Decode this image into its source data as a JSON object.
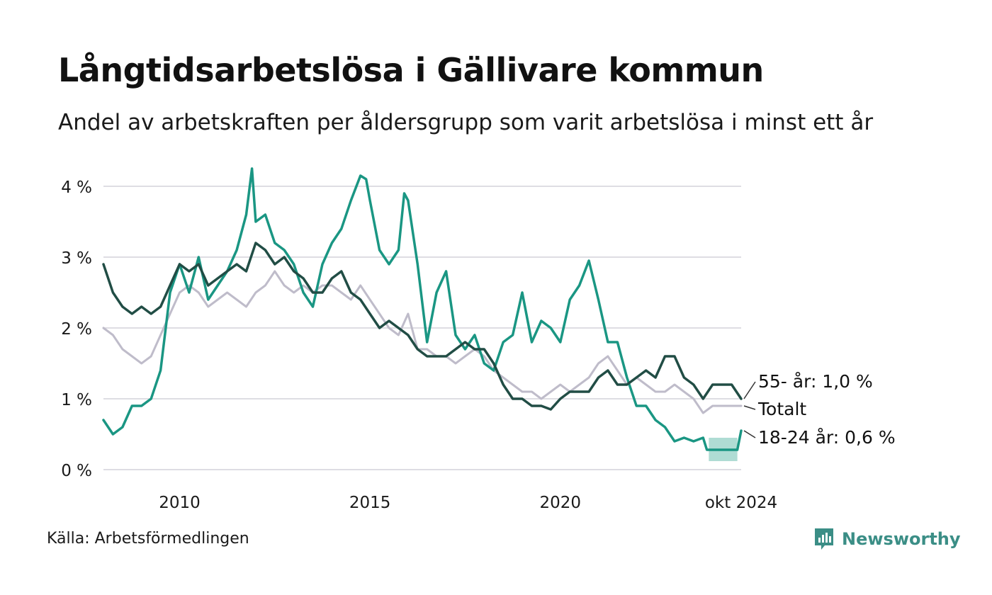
{
  "header": {
    "title": "Långtidsarbetslösa i Gällivare kommun",
    "subtitle": "Andel av arbetskraften per åldersgrupp som varit arbetslösa i minst ett år"
  },
  "footer": {
    "source": "Källa: Arbetsförmedlingen",
    "brand": "Newsworthy"
  },
  "colors": {
    "youth": "#1a9683",
    "old": "#214d45",
    "total": "#bfbcca",
    "grid": "#dedde3",
    "band": "#a6d8cf",
    "brand": "#3b8e86"
  },
  "chart_data": {
    "type": "line",
    "title": "Långtidsarbetslösa i Gällivare kommun",
    "subtitle": "Andel av arbetskraften per åldersgrupp som varit arbetslösa i minst ett år",
    "xlabel": "",
    "ylabel": "",
    "xlim": [
      2008.0,
      2024.75
    ],
    "ylim": [
      0,
      4.3
    ],
    "y_ticks": [
      {
        "value": 0,
        "label": "0 %"
      },
      {
        "value": 1,
        "label": "1 %"
      },
      {
        "value": 2,
        "label": "2 %"
      },
      {
        "value": 3,
        "label": "3 %"
      },
      {
        "value": 4,
        "label": "4 %"
      }
    ],
    "x_ticks": [
      {
        "value": 2010,
        "label": "2010"
      },
      {
        "value": 2015,
        "label": "2015"
      },
      {
        "value": 2020,
        "label": "2020"
      },
      {
        "value": 2024.75,
        "label": "okt 2024"
      }
    ],
    "grid": true,
    "series": [
      {
        "name": "Totalt",
        "end_label": "Totalt",
        "color_key": "total",
        "x": [
          2008.0,
          2008.25,
          2008.5,
          2008.75,
          2009.0,
          2009.25,
          2009.5,
          2009.75,
          2010.0,
          2010.25,
          2010.5,
          2010.75,
          2011.0,
          2011.25,
          2011.5,
          2011.75,
          2012.0,
          2012.25,
          2012.5,
          2012.75,
          2013.0,
          2013.25,
          2013.5,
          2013.75,
          2014.0,
          2014.25,
          2014.5,
          2014.75,
          2015.0,
          2015.25,
          2015.5,
          2015.75,
          2016.0,
          2016.25,
          2016.5,
          2016.75,
          2017.0,
          2017.25,
          2017.5,
          2017.75,
          2018.0,
          2018.25,
          2018.5,
          2018.75,
          2019.0,
          2019.25,
          2019.5,
          2019.75,
          2020.0,
          2020.25,
          2020.5,
          2020.75,
          2021.0,
          2021.25,
          2021.5,
          2021.75,
          2022.0,
          2022.25,
          2022.5,
          2022.75,
          2023.0,
          2023.25,
          2023.5,
          2023.75,
          2024.0,
          2024.25,
          2024.5,
          2024.75
        ],
        "values": [
          2.0,
          1.9,
          1.7,
          1.6,
          1.5,
          1.6,
          1.9,
          2.2,
          2.5,
          2.6,
          2.5,
          2.3,
          2.4,
          2.5,
          2.4,
          2.3,
          2.5,
          2.6,
          2.8,
          2.6,
          2.5,
          2.6,
          2.5,
          2.6,
          2.6,
          2.5,
          2.4,
          2.6,
          2.4,
          2.2,
          2.0,
          1.9,
          2.2,
          1.7,
          1.7,
          1.6,
          1.6,
          1.5,
          1.6,
          1.7,
          1.6,
          1.4,
          1.3,
          1.2,
          1.1,
          1.1,
          1.0,
          1.1,
          1.2,
          1.1,
          1.2,
          1.3,
          1.5,
          1.6,
          1.4,
          1.2,
          1.3,
          1.2,
          1.1,
          1.1,
          1.2,
          1.1,
          1.0,
          0.8,
          0.9,
          0.9,
          0.9,
          0.9
        ]
      },
      {
        "name": "18-24 år",
        "end_label": "18-24 år: 0,6 %",
        "color_key": "youth",
        "x": [
          2008.0,
          2008.25,
          2008.5,
          2008.75,
          2009.0,
          2009.25,
          2009.5,
          2009.75,
          2010.0,
          2010.25,
          2010.5,
          2010.75,
          2011.0,
          2011.25,
          2011.5,
          2011.75,
          2011.9,
          2012.0,
          2012.25,
          2012.5,
          2012.75,
          2013.0,
          2013.25,
          2013.5,
          2013.75,
          2014.0,
          2014.25,
          2014.5,
          2014.75,
          2014.9,
          2015.0,
          2015.25,
          2015.5,
          2015.75,
          2015.9,
          2016.0,
          2016.25,
          2016.5,
          2016.75,
          2017.0,
          2017.25,
          2017.5,
          2017.75,
          2018.0,
          2018.25,
          2018.5,
          2018.75,
          2019.0,
          2019.25,
          2019.5,
          2019.75,
          2020.0,
          2020.25,
          2020.5,
          2020.75,
          2021.0,
          2021.25,
          2021.5,
          2021.75,
          2022.0,
          2022.25,
          2022.5,
          2022.75,
          2023.0,
          2023.25,
          2023.5,
          2023.75,
          2023.85,
          2024.0,
          2024.25,
          2024.5,
          2024.65,
          2024.75
        ],
        "values": [
          0.7,
          0.5,
          0.6,
          0.9,
          0.9,
          1.0,
          1.4,
          2.5,
          2.9,
          2.5,
          3.0,
          2.4,
          2.6,
          2.8,
          3.1,
          3.6,
          4.25,
          3.5,
          3.6,
          3.2,
          3.1,
          2.9,
          2.5,
          2.3,
          2.9,
          3.2,
          3.4,
          3.8,
          4.15,
          4.1,
          3.8,
          3.1,
          2.9,
          3.1,
          3.9,
          3.8,
          2.9,
          1.8,
          2.5,
          2.8,
          1.9,
          1.7,
          1.9,
          1.5,
          1.4,
          1.8,
          1.9,
          2.5,
          1.8,
          2.1,
          2.0,
          1.8,
          2.4,
          2.6,
          2.95,
          2.4,
          1.8,
          1.8,
          1.3,
          0.9,
          0.9,
          0.7,
          0.6,
          0.4,
          0.45,
          0.4,
          0.45,
          0.28,
          0.28,
          0.28,
          0.28,
          0.28,
          0.55
        ],
        "band": {
          "x_start": 2023.9,
          "x_end": 2024.65,
          "low": 0.12,
          "high": 0.45
        }
      },
      {
        "name": "55- år",
        "end_label": "55- år: 1,0 %",
        "color_key": "old",
        "x": [
          2008.0,
          2008.25,
          2008.5,
          2008.75,
          2009.0,
          2009.25,
          2009.5,
          2009.75,
          2010.0,
          2010.25,
          2010.5,
          2010.75,
          2011.0,
          2011.25,
          2011.5,
          2011.75,
          2012.0,
          2012.25,
          2012.5,
          2012.75,
          2013.0,
          2013.25,
          2013.5,
          2013.75,
          2014.0,
          2014.25,
          2014.5,
          2014.75,
          2015.0,
          2015.25,
          2015.5,
          2015.75,
          2016.0,
          2016.25,
          2016.5,
          2016.75,
          2017.0,
          2017.25,
          2017.5,
          2017.75,
          2018.0,
          2018.25,
          2018.5,
          2018.75,
          2019.0,
          2019.25,
          2019.5,
          2019.75,
          2020.0,
          2020.25,
          2020.5,
          2020.75,
          2021.0,
          2021.25,
          2021.5,
          2021.75,
          2022.0,
          2022.25,
          2022.5,
          2022.75,
          2023.0,
          2023.25,
          2023.5,
          2023.75,
          2024.0,
          2024.25,
          2024.5,
          2024.75
        ],
        "values": [
          2.9,
          2.5,
          2.3,
          2.2,
          2.3,
          2.2,
          2.3,
          2.6,
          2.9,
          2.8,
          2.9,
          2.6,
          2.7,
          2.8,
          2.9,
          2.8,
          3.2,
          3.1,
          2.9,
          3.0,
          2.8,
          2.7,
          2.5,
          2.5,
          2.7,
          2.8,
          2.5,
          2.4,
          2.2,
          2.0,
          2.1,
          2.0,
          1.9,
          1.7,
          1.6,
          1.6,
          1.6,
          1.7,
          1.8,
          1.7,
          1.7,
          1.5,
          1.2,
          1.0,
          1.0,
          0.9,
          0.9,
          0.85,
          1.0,
          1.1,
          1.1,
          1.1,
          1.3,
          1.4,
          1.2,
          1.2,
          1.3,
          1.4,
          1.3,
          1.6,
          1.6,
          1.3,
          1.2,
          1.0,
          1.2,
          1.2,
          1.2,
          1.0
        ]
      }
    ]
  }
}
